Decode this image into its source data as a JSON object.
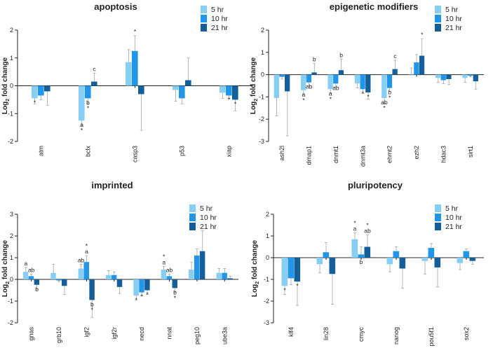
{
  "colors": {
    "5hr": "#87CEF5",
    "10hr": "#2196E8",
    "21hr": "#145E99"
  },
  "series_names": [
    "5 hr",
    "10 hr",
    "21 hr"
  ],
  "ylabel_main": "Log",
  "ylabel_sub": "2",
  "ylabel_rest": " fold change",
  "chart_data": [
    {
      "type": "bar",
      "title": "apoptosis",
      "ylim": [
        -2,
        2
      ],
      "yticks": [
        "-2",
        "-1",
        "0",
        "1",
        "2"
      ],
      "categories": [
        "atm",
        "bclx",
        "casp3",
        "p53",
        "xiap"
      ],
      "series": [
        {
          "name": "5 hr",
          "values": [
            -0.45,
            -1.25,
            0.85,
            -0.15,
            -0.25
          ],
          "err": [
            0.2,
            0.2,
            0.45,
            0.4,
            0.2
          ]
        },
        {
          "name": "10 hr",
          "values": [
            -0.35,
            -0.45,
            1.25,
            -0.45,
            -0.35
          ],
          "err": [
            0.15,
            0.2,
            0.55,
            0.2,
            0.1
          ]
        },
        {
          "name": "21 hr",
          "values": [
            -0.2,
            0.15,
            -0.3,
            0.2,
            -0.5
          ],
          "err": [
            0.5,
            0.3,
            1.3,
            0.8,
            0.4
          ]
        }
      ],
      "annotations": [
        {
          "cat": 0,
          "s": 0,
          "lines": [
            "*"
          ]
        },
        {
          "cat": 1,
          "s": 0,
          "lines": [
            "a",
            "*"
          ]
        },
        {
          "cat": 1,
          "s": 1,
          "lines": [
            "b",
            "*"
          ]
        },
        {
          "cat": 1,
          "s": 2,
          "lines": [
            "c"
          ],
          "above": true
        },
        {
          "cat": 2,
          "s": 1,
          "lines": [
            "*"
          ],
          "above": true
        },
        {
          "cat": 4,
          "s": 1,
          "lines": [
            "*"
          ]
        },
        {
          "cat": 4,
          "s": 2,
          "lines": [
            "*"
          ]
        }
      ]
    },
    {
      "type": "bar",
      "title": "epigenetic modifiers",
      "ylim": [
        -3,
        2
      ],
      "yticks": [
        "-3",
        "-2",
        "-1",
        "0",
        "1",
        "2"
      ],
      "categories": [
        "ash2l",
        "dmap1",
        "dnmt1",
        "dnmt3a",
        "ehmt2",
        "ezh2",
        "hdac3",
        "sirt1"
      ],
      "series": [
        {
          "name": "5 hr",
          "values": [
            -1.05,
            -0.7,
            -0.65,
            -0.4,
            -1.05,
            0.0,
            -0.15,
            -0.15
          ],
          "err": [
            0.8,
            0.2,
            0.2,
            0.2,
            0.25,
            0.3,
            0.2,
            0.2
          ]
        },
        {
          "name": "10 hr",
          "values": [
            -0.1,
            -0.35,
            -0.4,
            -0.65,
            -0.6,
            0.55,
            -0.25,
            -0.05
          ],
          "err": [
            0.1,
            0.15,
            0.15,
            0.2,
            0.15,
            0.35,
            0.15,
            0.05
          ]
        },
        {
          "name": "21 hr",
          "values": [
            -0.75,
            0.1,
            0.2,
            -0.8,
            0.25,
            0.85,
            -0.2,
            -0.3
          ],
          "err": [
            2.0,
            0.4,
            0.5,
            0.3,
            0.4,
            0.75,
            0.25,
            0.35
          ]
        }
      ],
      "annotations": [
        {
          "cat": 1,
          "s": 0,
          "lines": [
            "a",
            "*"
          ]
        },
        {
          "cat": 1,
          "s": 1,
          "lines": [
            "ab"
          ]
        },
        {
          "cat": 1,
          "s": 2,
          "lines": [
            "b"
          ],
          "above": true
        },
        {
          "cat": 2,
          "s": 0,
          "lines": [
            "a",
            "*"
          ]
        },
        {
          "cat": 2,
          "s": 1,
          "lines": [
            "ab"
          ]
        },
        {
          "cat": 2,
          "s": 2,
          "lines": [
            "b"
          ],
          "above": true
        },
        {
          "cat": 3,
          "s": 1,
          "lines": [
            "*"
          ]
        },
        {
          "cat": 3,
          "s": 2,
          "lines": [
            "*"
          ]
        },
        {
          "cat": 4,
          "s": 0,
          "lines": [
            "ab",
            "*"
          ]
        },
        {
          "cat": 4,
          "s": 1,
          "lines": [
            "b",
            "*"
          ]
        },
        {
          "cat": 4,
          "s": 2,
          "lines": [
            "c"
          ],
          "above": true
        },
        {
          "cat": 5,
          "s": 2,
          "lines": [
            "*"
          ],
          "above": true
        }
      ]
    },
    {
      "type": "bar",
      "title": "imprinted",
      "ylim": [
        -2,
        3
      ],
      "yticks": [
        "-2",
        "-1",
        "0",
        "1",
        "2",
        "3"
      ],
      "categories": [
        "gnas",
        "grb10",
        "igf2",
        "igf2r",
        "necd",
        "nnat",
        "peg10",
        "ube3a"
      ],
      "series": [
        {
          "name": "5 hr",
          "values": [
            0.35,
            0.3,
            0.5,
            0.2,
            -0.75,
            0.45,
            0.45,
            0.3
          ],
          "err": [
            0.2,
            0.4,
            0.2,
            0.2,
            0.2,
            0.15,
            0.35,
            0.2
          ]
        },
        {
          "name": "10 hr",
          "values": [
            0.15,
            -0.05,
            0.8,
            0.2,
            -0.6,
            0.15,
            1.1,
            0.3
          ],
          "err": [
            0.1,
            0.05,
            0.3,
            0.15,
            0.15,
            0.1,
            0.3,
            0.2
          ]
        },
        {
          "name": "21 hr",
          "values": [
            -0.25,
            -0.3,
            -0.95,
            -0.35,
            -0.5,
            -0.4,
            1.3,
            0.05
          ],
          "err": [
            0.2,
            0.4,
            0.8,
            0.3,
            0.2,
            0.2,
            0.95,
            0.1
          ]
        }
      ],
      "annotations": [
        {
          "cat": 0,
          "s": 0,
          "lines": [
            "a"
          ],
          "above": true
        },
        {
          "cat": 0,
          "s": 1,
          "lines": [
            "ab"
          ],
          "above": true
        },
        {
          "cat": 0,
          "s": 2,
          "lines": [
            "b"
          ]
        },
        {
          "cat": 2,
          "s": 0,
          "lines": [
            "ab"
          ],
          "above": true
        },
        {
          "cat": 2,
          "s": 1,
          "lines": [
            "*",
            "a"
          ],
          "above": true
        },
        {
          "cat": 2,
          "s": 2,
          "lines": [
            "b",
            "*"
          ]
        },
        {
          "cat": 4,
          "s": 0,
          "lines": [
            "*"
          ]
        },
        {
          "cat": 4,
          "s": 1,
          "lines": [
            "*"
          ]
        },
        {
          "cat": 4,
          "s": 2,
          "lines": [
            "*"
          ]
        },
        {
          "cat": 5,
          "s": 0,
          "lines": [
            "*",
            "a"
          ],
          "above": true
        },
        {
          "cat": 5,
          "s": 1,
          "lines": [
            "ab"
          ],
          "above": true
        },
        {
          "cat": 5,
          "s": 2,
          "lines": [
            "b",
            "*"
          ]
        }
      ]
    },
    {
      "type": "bar",
      "title": "pluripotency",
      "ylim": [
        -3,
        2
      ],
      "yticks": [
        "-3",
        "-2",
        "-1",
        "0",
        "1",
        "2"
      ],
      "categories": [
        "klf4",
        "lin28",
        "cmyc",
        "nanog",
        "pou5f1",
        "sox2"
      ],
      "series": [
        {
          "name": "5 hr",
          "values": [
            -1.3,
            -0.3,
            0.85,
            -0.3,
            -0.15,
            -0.25
          ],
          "err": [
            0.4,
            0.4,
            0.3,
            0.35,
            0.6,
            0.3
          ]
        },
        {
          "name": "10 hr",
          "values": [
            -0.95,
            0.25,
            0.15,
            0.3,
            0.45,
            0.3
          ],
          "err": [
            0.3,
            0.45,
            0.35,
            0.2,
            0.2,
            0.1
          ]
        },
        {
          "name": "21 hr",
          "values": [
            -1.1,
            -0.75,
            0.5,
            -0.5,
            -0.45,
            -0.15
          ],
          "err": [
            1.1,
            1.4,
            0.55,
            0.9,
            0.9,
            0.15
          ]
        }
      ],
      "annotations": [
        {
          "cat": 0,
          "s": 0,
          "lines": [
            "*"
          ]
        },
        {
          "cat": 0,
          "s": 2,
          "lines": [
            "*"
          ]
        },
        {
          "cat": 2,
          "s": 0,
          "lines": [
            "*",
            "a"
          ],
          "above": true
        },
        {
          "cat": 2,
          "s": 1,
          "lines": [
            "b"
          ]
        },
        {
          "cat": 2,
          "s": 2,
          "lines": [
            "*",
            "ab"
          ],
          "above": true
        }
      ]
    }
  ]
}
